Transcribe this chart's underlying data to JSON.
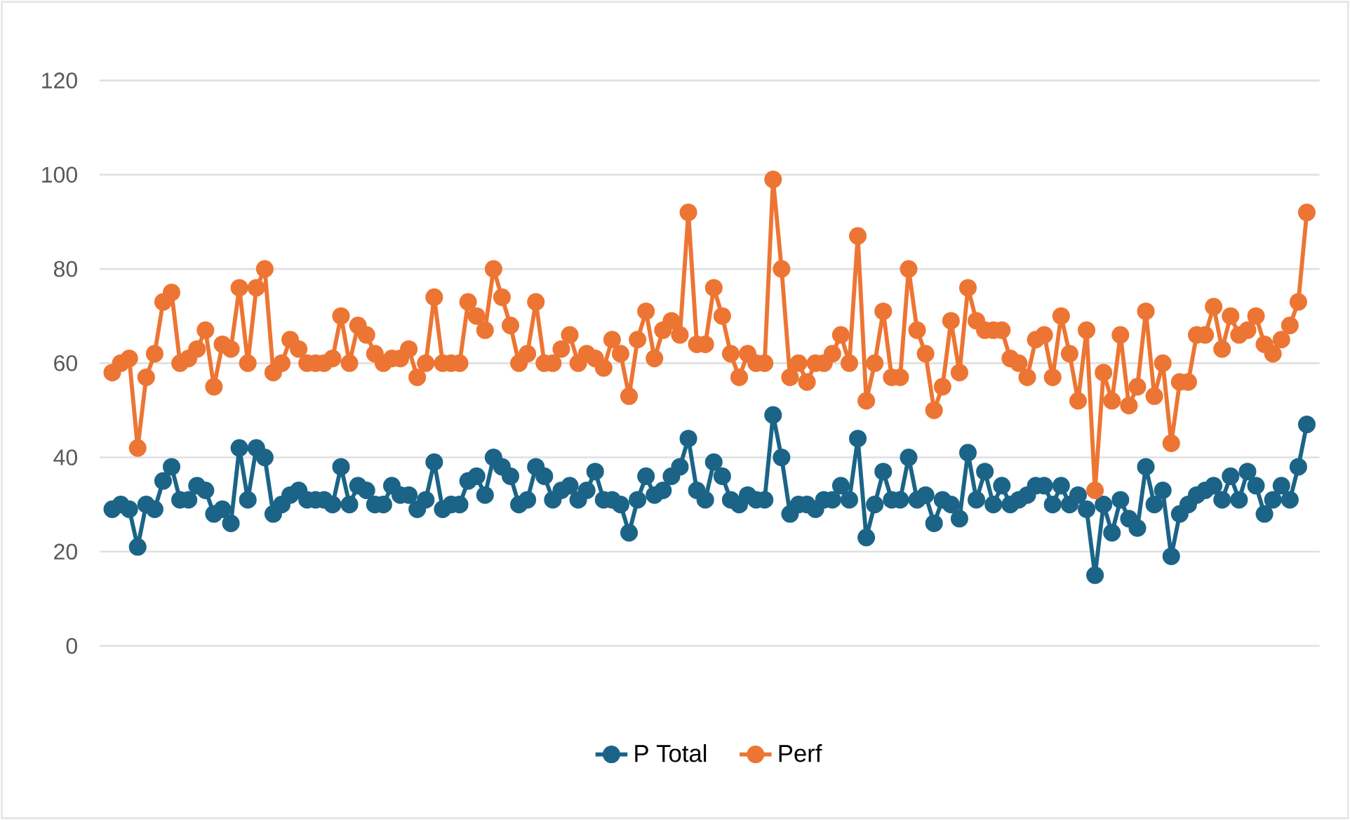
{
  "chart_data": {
    "type": "line",
    "categories": [
      null,
      null,
      null,
      null,
      null,
      null,
      null,
      null,
      null,
      null,
      null,
      null,
      null,
      null,
      null,
      null,
      null,
      null,
      null,
      null,
      null,
      null,
      null,
      null,
      null,
      null,
      null,
      null,
      null,
      null,
      null,
      null,
      null,
      null,
      null,
      null,
      null,
      null,
      null,
      null,
      null,
      null,
      null,
      null,
      null,
      null,
      null,
      null,
      null,
      null,
      null,
      null,
      null,
      null,
      null,
      null,
      null,
      null,
      null,
      null,
      null,
      null,
      null,
      null,
      null,
      null,
      null,
      null,
      null,
      null,
      null,
      null,
      null,
      null,
      null,
      null,
      null,
      null,
      null,
      null,
      null,
      null,
      null,
      null,
      null,
      null,
      null,
      null,
      null,
      null,
      null,
      null,
      null,
      null,
      null,
      null,
      null,
      null,
      null,
      null,
      null,
      null,
      null,
      null,
      null,
      null,
      null,
      null,
      null,
      null,
      null,
      null,
      null,
      null,
      null,
      null,
      null,
      null,
      null,
      null,
      null,
      null,
      null,
      null,
      null,
      null,
      null,
      null,
      null,
      null,
      null,
      null,
      null,
      null,
      null,
      null,
      null,
      null,
      null,
      null,
      null,
      null
    ],
    "series": [
      {
        "name": "P Total",
        "color": "#1b6487",
        "values": [
          29,
          30,
          29,
          21,
          30,
          29,
          35,
          38,
          31,
          31,
          34,
          33,
          28,
          29,
          26,
          42,
          31,
          42,
          40,
          28,
          30,
          32,
          33,
          31,
          31,
          31,
          30,
          38,
          30,
          34,
          33,
          30,
          30,
          34,
          32,
          32,
          29,
          31,
          39,
          29,
          30,
          30,
          35,
          36,
          32,
          40,
          38,
          36,
          30,
          31,
          38,
          36,
          31,
          33,
          34,
          31,
          33,
          37,
          31,
          31,
          30,
          24,
          31,
          36,
          32,
          33,
          36,
          38,
          44,
          33,
          31,
          39,
          36,
          31,
          30,
          32,
          31,
          31,
          49,
          40,
          28,
          30,
          30,
          29,
          31,
          31,
          34,
          31,
          44,
          23,
          30,
          37,
          31,
          31,
          40,
          31,
          32,
          26,
          31,
          30,
          27,
          41,
          31,
          37,
          30,
          34,
          30,
          31,
          32,
          34,
          34,
          30,
          34,
          30,
          32,
          29,
          15,
          30,
          24,
          31,
          27,
          25,
          38,
          30,
          33,
          19,
          28,
          30,
          32,
          33,
          34,
          31,
          36,
          31,
          37,
          34,
          28,
          31,
          34,
          31,
          38,
          47
        ]
      },
      {
        "name": "Perf",
        "color": "#ed7533",
        "values": [
          58,
          60,
          61,
          42,
          57,
          62,
          73,
          75,
          60,
          61,
          63,
          67,
          55,
          64,
          63,
          76,
          60,
          76,
          80,
          58,
          60,
          65,
          63,
          60,
          60,
          60,
          61,
          70,
          60,
          68,
          66,
          62,
          60,
          61,
          61,
          63,
          57,
          60,
          74,
          60,
          60,
          60,
          73,
          70,
          67,
          80,
          74,
          68,
          60,
          62,
          73,
          60,
          60,
          63,
          66,
          60,
          62,
          61,
          59,
          65,
          62,
          53,
          65,
          71,
          61,
          67,
          69,
          66,
          92,
          64,
          64,
          76,
          70,
          62,
          57,
          62,
          60,
          60,
          99,
          80,
          57,
          60,
          56,
          60,
          60,
          62,
          66,
          60,
          87,
          52,
          60,
          71,
          57,
          57,
          80,
          67,
          62,
          50,
          55,
          69,
          58,
          76,
          69,
          67,
          67,
          67,
          61,
          60,
          57,
          65,
          66,
          57,
          70,
          62,
          52,
          67,
          33,
          58,
          52,
          66,
          51,
          55,
          71,
          53,
          60,
          43,
          56,
          56,
          66,
          66,
          72,
          63,
          70,
          66,
          67,
          70,
          64,
          62,
          65,
          68,
          73,
          92
        ]
      }
    ],
    "ylim": [
      0,
      120
    ],
    "yticks": [
      0,
      20,
      40,
      60,
      80,
      100,
      120
    ],
    "grid": "y",
    "legend": "bottom",
    "marker": "circle",
    "line_style": "solid"
  }
}
